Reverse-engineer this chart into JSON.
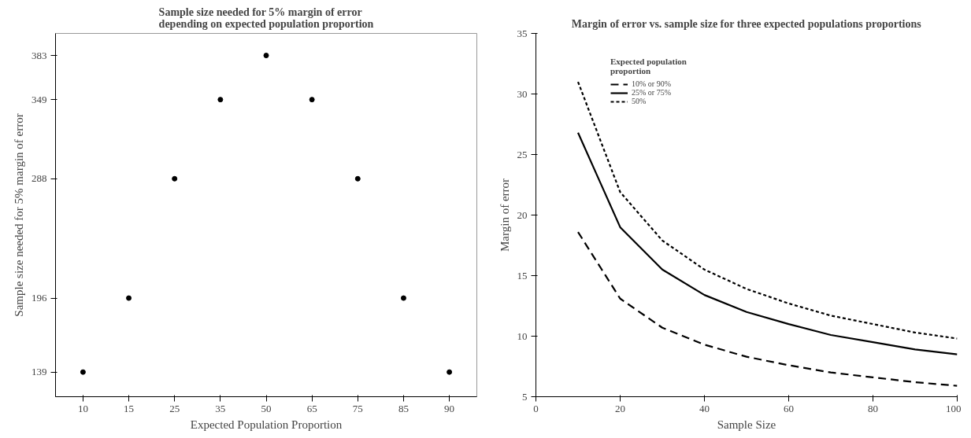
{
  "chart_data": [
    {
      "type": "scatter",
      "title": "Sample size needed for 5% margin of error depending on expected population proportion",
      "xlabel": "Expected Population Proportion",
      "ylabel": "Sample size needed for 5% margin of error",
      "categories": [
        "10",
        "15",
        "25",
        "35",
        "50",
        "65",
        "75",
        "85",
        "90"
      ],
      "series": [
        {
          "color": "#000000",
          "values": [
            139,
            196,
            288,
            349,
            383,
            349,
            288,
            196,
            139
          ]
        }
      ],
      "ylim": [
        120,
        400
      ],
      "yticks": [
        139,
        196,
        288,
        349,
        383
      ],
      "marker": "circle",
      "grid": false,
      "legend": false
    },
    {
      "type": "line",
      "title": "Margin of error vs. sample size for three expected populations proportions",
      "xlabel": "Sample Size",
      "ylabel": "Margin of error",
      "legend_title": "Expected population proportion",
      "legend": "top left",
      "grid": false,
      "marker": "none",
      "xlim": [
        0,
        100
      ],
      "xticks": [
        0,
        20,
        40,
        60,
        80,
        100
      ],
      "ylim": [
        5,
        35
      ],
      "yticks": [
        5,
        10,
        15,
        20,
        25,
        30,
        35
      ],
      "x": [
        10,
        20,
        30,
        40,
        50,
        60,
        70,
        80,
        90,
        100
      ],
      "series": [
        {
          "name": "10% or 90%",
          "color": "#000000",
          "line_style": "dashed",
          "values": [
            18.6,
            13.1,
            10.7,
            9.3,
            8.3,
            7.6,
            7.0,
            6.6,
            6.2,
            5.9
          ]
        },
        {
          "name": "25% or 75%",
          "color": "#000000",
          "line_style": "solid",
          "values": [
            26.8,
            19.0,
            15.5,
            13.4,
            12.0,
            11.0,
            10.1,
            9.5,
            8.9,
            8.5
          ]
        },
        {
          "name": "50%",
          "color": "#000000",
          "line_style": "dotted",
          "values": [
            31.0,
            21.9,
            17.9,
            15.5,
            13.9,
            12.7,
            11.7,
            11.0,
            10.3,
            9.8
          ]
        }
      ]
    }
  ]
}
